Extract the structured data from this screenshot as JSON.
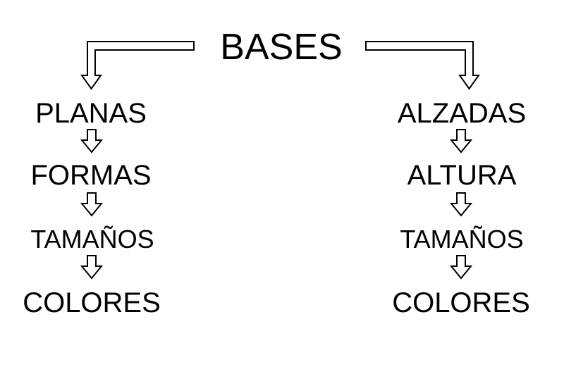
{
  "title": "BASES",
  "branches": [
    {
      "name": "left",
      "items": [
        "PLANAS",
        "FORMAS",
        "TAMAÑOS",
        "COLORES"
      ]
    },
    {
      "name": "right",
      "items": [
        "ALZADAS",
        "ALTURA",
        "TAMAÑOS",
        "COLORES"
      ]
    }
  ],
  "colors": {
    "stroke": "#000000",
    "arrow_fill": "#ffffff",
    "text": "#000000",
    "background": "#ffffff"
  }
}
